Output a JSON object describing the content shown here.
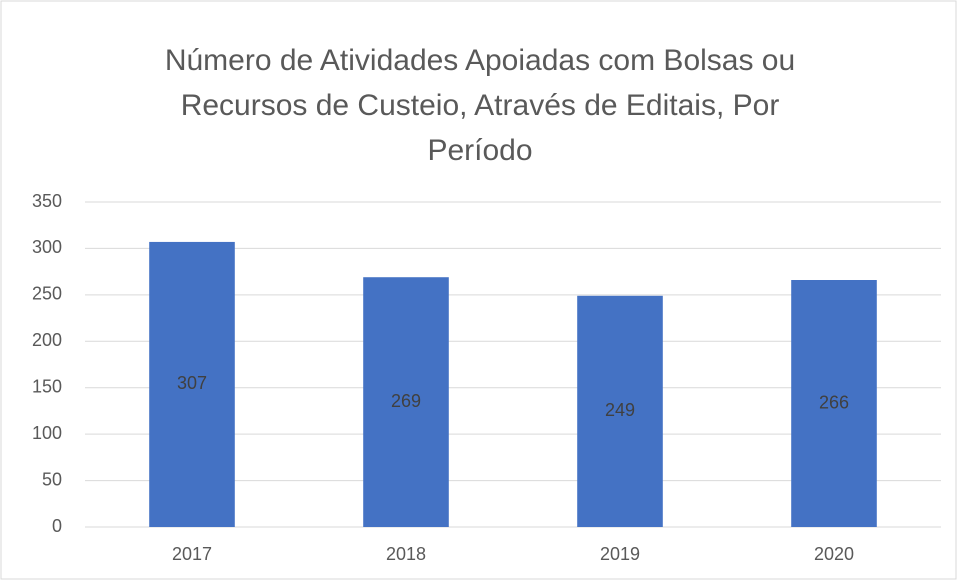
{
  "chart_data": {
    "type": "bar",
    "title": "Número de Atividades Apoiadas com Bolsas ou Recursos de Custeio, Através de Editais, Por Período",
    "categories": [
      "2017",
      "2018",
      "2019",
      "2020"
    ],
    "values": [
      307,
      269,
      249,
      266
    ],
    "color": "#4472c4",
    "ylim": [
      0,
      350
    ],
    "yticks": [
      0,
      50,
      100,
      150,
      200,
      250,
      300,
      350
    ],
    "grid": true,
    "data_labels": true
  }
}
